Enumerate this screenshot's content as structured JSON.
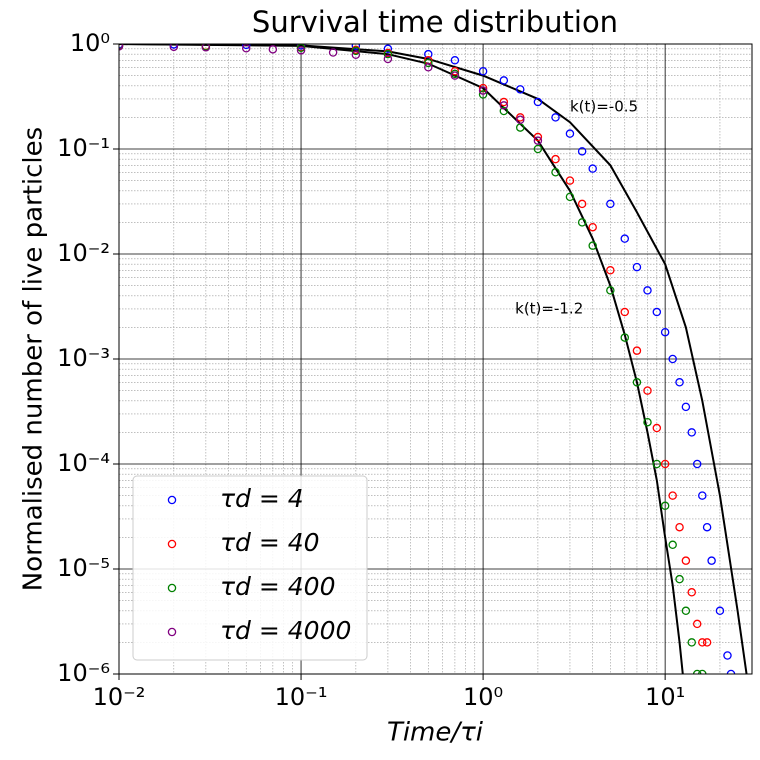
{
  "chart_data": {
    "type": "scatter",
    "title": "Survival time distribution",
    "xlabel": "Time/τi",
    "ylabel": "Normalised number of live particles",
    "xscale": "log",
    "yscale": "log",
    "xlim": [
      0.01,
      30
    ],
    "ylim": [
      1e-06,
      1
    ],
    "xticks": [
      {
        "value": 0.01,
        "label": "10⁻²"
      },
      {
        "value": 0.1,
        "label": "10⁻¹"
      },
      {
        "value": 1,
        "label": "10⁰"
      },
      {
        "value": 10,
        "label": "10¹"
      }
    ],
    "yticks": [
      {
        "value": 1e-06,
        "label": "10⁻⁶"
      },
      {
        "value": 1e-05,
        "label": "10⁻⁵"
      },
      {
        "value": 0.0001,
        "label": "10⁻⁴"
      },
      {
        "value": 0.001,
        "label": "10⁻³"
      },
      {
        "value": 0.01,
        "label": "10⁻²"
      },
      {
        "value": 0.1,
        "label": "10⁻¹"
      },
      {
        "value": 1,
        "label": "10⁰"
      }
    ],
    "grid": true,
    "minor_grid": true,
    "legend": "lower left",
    "series": [
      {
        "name": "τd = 4",
        "color": "#0000ff",
        "x": [
          0.01,
          0.02,
          0.05,
          0.1,
          0.2,
          0.3,
          0.5,
          0.7,
          1,
          1.3,
          1.6,
          2,
          2.5,
          3,
          3.5,
          4,
          5,
          6,
          7,
          8,
          9,
          10,
          11,
          12,
          13,
          14,
          15,
          16,
          17,
          18,
          20,
          22,
          23
        ],
        "values": [
          0.99,
          0.99,
          0.98,
          0.97,
          0.96,
          0.9,
          0.8,
          0.7,
          0.55,
          0.45,
          0.37,
          0.28,
          0.2,
          0.14,
          0.095,
          0.065,
          0.03,
          0.014,
          0.0075,
          0.0045,
          0.0028,
          0.0018,
          0.001,
          0.0006,
          0.00035,
          0.0002,
          0.0001,
          5e-05,
          2.5e-05,
          1.2e-05,
          4e-06,
          1.5e-06,
          1e-06
        ]
      },
      {
        "name": "τd = 40",
        "color": "#ff0000",
        "x": [
          0.01,
          0.03,
          0.1,
          0.2,
          0.3,
          0.5,
          0.7,
          1,
          1.3,
          1.6,
          2,
          2.5,
          3,
          3.5,
          4,
          5,
          6,
          7,
          8,
          9,
          10,
          11,
          12,
          13,
          14,
          15,
          16,
          17
        ],
        "values": [
          0.97,
          0.96,
          0.93,
          0.88,
          0.82,
          0.7,
          0.55,
          0.38,
          0.28,
          0.2,
          0.13,
          0.08,
          0.05,
          0.03,
          0.018,
          0.007,
          0.0028,
          0.0012,
          0.0005,
          0.00022,
          0.0001,
          5e-05,
          2.5e-05,
          1.2e-05,
          6e-06,
          3e-06,
          2e-06,
          2e-06
        ]
      },
      {
        "name": "τd = 400",
        "color": "#008000",
        "x": [
          0.01,
          0.03,
          0.1,
          0.2,
          0.3,
          0.5,
          0.7,
          1,
          1.3,
          1.6,
          2,
          2.5,
          3,
          3.5,
          4,
          5,
          6,
          7,
          8,
          9,
          10,
          11,
          12,
          13,
          14,
          15,
          16
        ],
        "values": [
          0.96,
          0.95,
          0.92,
          0.86,
          0.8,
          0.66,
          0.52,
          0.33,
          0.23,
          0.16,
          0.1,
          0.06,
          0.035,
          0.02,
          0.012,
          0.0045,
          0.0016,
          0.0006,
          0.00025,
          0.0001,
          4e-05,
          1.7e-05,
          8e-06,
          4e-06,
          2e-06,
          1e-06,
          1e-06
        ]
      },
      {
        "name": "τd = 4000",
        "color": "#800080",
        "x": [
          0.01,
          0.02,
          0.03,
          0.05,
          0.07,
          0.1,
          0.15,
          0.2,
          0.3,
          0.5,
          0.7,
          1,
          1.3,
          1.6,
          2
        ],
        "values": [
          0.95,
          0.94,
          0.93,
          0.91,
          0.89,
          0.87,
          0.83,
          0.79,
          0.72,
          0.6,
          0.5,
          0.36,
          0.26,
          0.19,
          0.12
        ]
      }
    ],
    "curves": [
      {
        "color": "#000000",
        "x": [
          0.01,
          0.1,
          0.3,
          0.5,
          1,
          2,
          3,
          5,
          7,
          10,
          13,
          16,
          20,
          25,
          28
        ],
        "values": [
          1,
          0.97,
          0.85,
          0.72,
          0.5,
          0.3,
          0.18,
          0.07,
          0.025,
          0.008,
          0.002,
          0.0004,
          5e-05,
          4e-06,
          1e-06
        ]
      },
      {
        "color": "#000000",
        "x": [
          0.01,
          0.1,
          0.3,
          0.5,
          1,
          2,
          3,
          4,
          5,
          6,
          7,
          8,
          9,
          10,
          11,
          12,
          12.5
        ],
        "values": [
          1,
          0.96,
          0.8,
          0.65,
          0.38,
          0.12,
          0.04,
          0.014,
          0.005,
          0.0017,
          0.0006,
          0.0002,
          7e-05,
          2e-05,
          7e-06,
          2e-06,
          1e-06
        ]
      }
    ],
    "annotations": [
      {
        "text": "k(t)=-0.5",
        "x": 3,
        "y": 0.25
      },
      {
        "text": "k(t)=-1.2",
        "x": 1.5,
        "y": 0.003
      }
    ]
  }
}
